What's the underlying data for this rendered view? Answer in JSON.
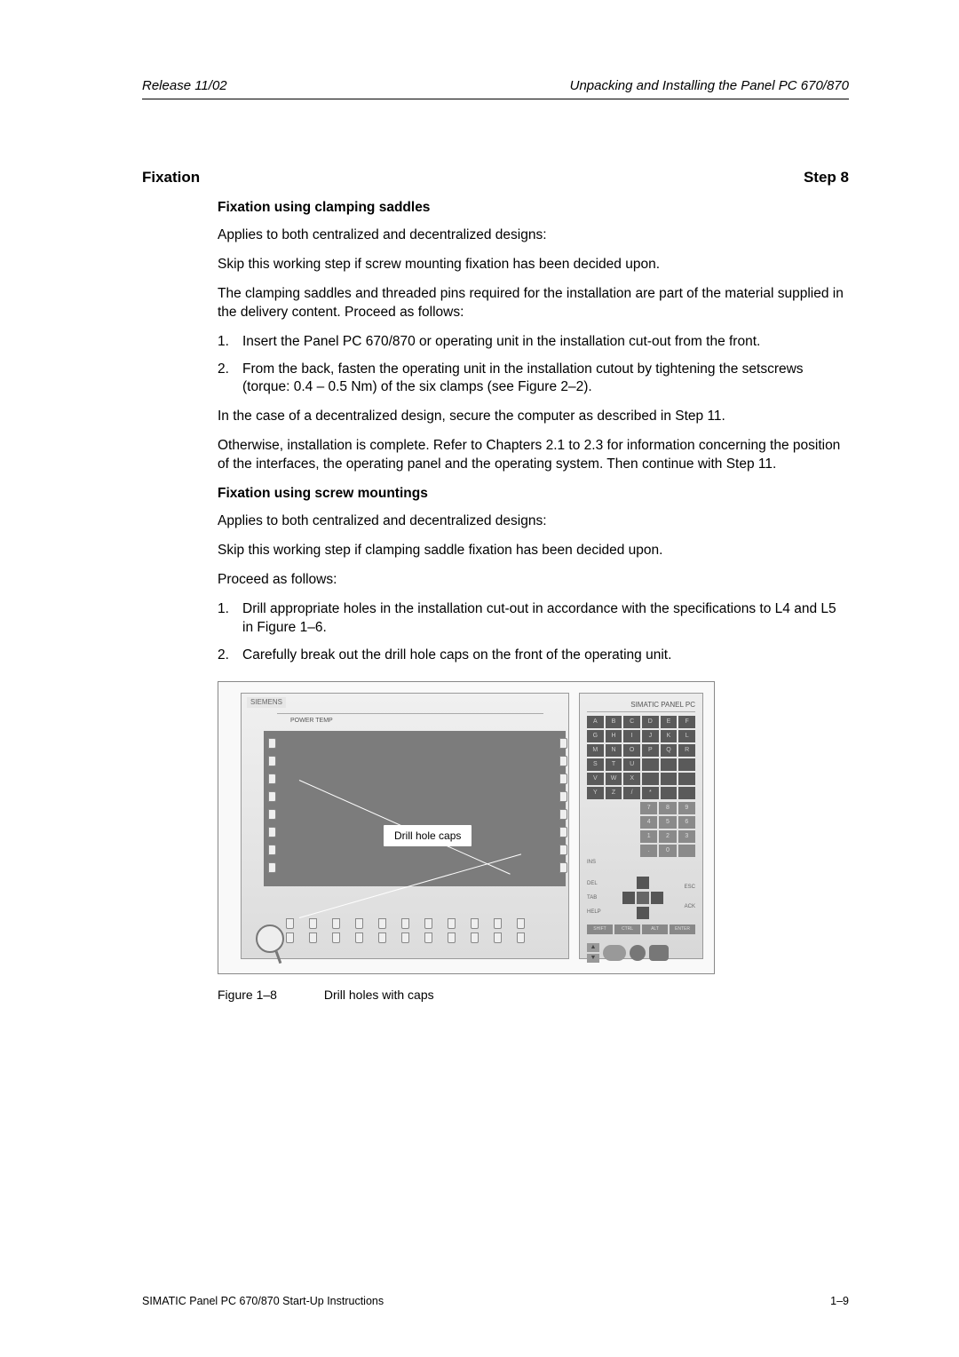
{
  "header": {
    "left": "Release 11/02",
    "right": "Unpacking and Installing the Panel PC 670/870"
  },
  "section": {
    "title": "Fixation",
    "step": "Step 8"
  },
  "sub1": {
    "heading": "Fixation using clamping saddles",
    "p1": "Applies to both centralized and decentralized designs:",
    "p2": "Skip this working step if screw mounting fixation has been decided upon.",
    "p3": "The clamping saddles and threaded pins required for the installation are part of the material supplied in the delivery content. Proceed as follows:",
    "li1": "Insert the Panel PC 670/870 or operating unit in the installation cut-out from the front.",
    "li2": "From the back, fasten the operating unit in the installation cutout by tightening the setscrews (torque: 0.4 – 0.5 Nm) of the six clamps (see Figure 2–2).",
    "p4": "In the case of a decentralized design, secure the computer as described in Step 11.",
    "p5": "Otherwise, installation is complete. Refer to Chapters 2.1 to 2.3 for information concerning the position of the interfaces, the operating panel and the operating system. Then continue with Step 11."
  },
  "sub2": {
    "heading": "Fixation using screw mountings",
    "p1": "Applies to both centralized and decentralized designs:",
    "p2": "Skip this working step if clamping saddle fixation has been decided upon.",
    "p3": "Proceed as follows:",
    "li1": "Drill appropriate holes in the installation cut-out in accordance with the specifications to L4 and L5 in Figure 1–6.",
    "li2": "Carefully break out the drill hole caps on the front of the operating unit."
  },
  "figure": {
    "brand": "SIEMENS",
    "small_labels": "POWER    TEMP",
    "keypad_title": "SIMATIC PANEL PC",
    "alpha_keys": [
      "A",
      "B",
      "C",
      "D",
      "E",
      "F",
      "G",
      "H",
      "I",
      "J",
      "K",
      "L",
      "M",
      "N",
      "O",
      "P",
      "Q",
      "R",
      "S",
      "T",
      "U",
      "",
      "",
      "",
      "V",
      "W",
      "X",
      "",
      "",
      "",
      "Y",
      "Z",
      "/",
      "*",
      "",
      ""
    ],
    "num_keys": [
      "7",
      "8",
      "9",
      "4",
      "5",
      "6",
      "1",
      "2",
      "3",
      ".",
      "0",
      ""
    ],
    "extra_labels": [
      "INS",
      "DEL",
      "TAB",
      "HELP",
      "SHIFT",
      "CTRL",
      "ALT",
      "ENTER",
      "ESC",
      "ACK"
    ],
    "label_box": "Drill hole caps",
    "caption_label": "Figure 1–8",
    "caption_text": "Drill holes with caps"
  },
  "footer": {
    "left": "SIMATIC Panel PC 670/870 Start-Up Instructions",
    "right": "1–9"
  },
  "colors": {
    "text": "#000000",
    "bg": "#ffffff"
  }
}
